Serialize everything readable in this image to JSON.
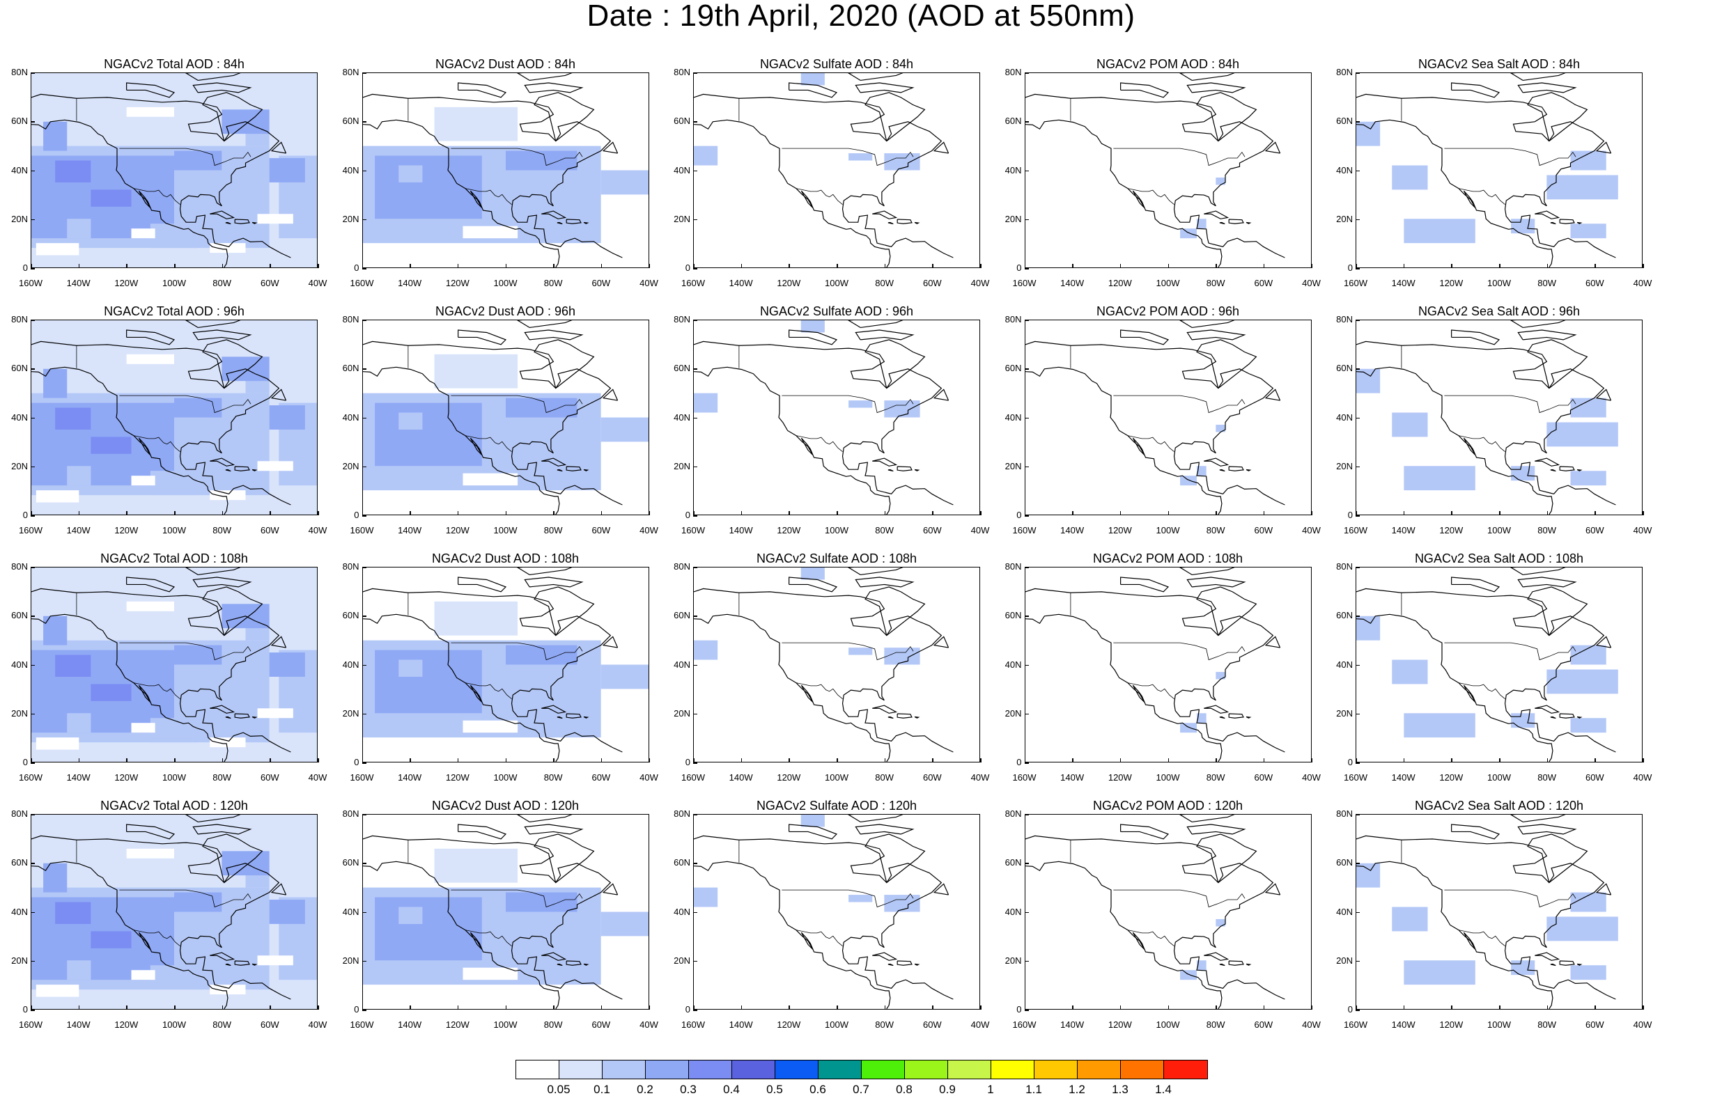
{
  "title": "Date : 19th April, 2020 (AOD at 550nm)",
  "map": {
    "lon_range": [
      -160,
      -40
    ],
    "lat_range": [
      0,
      80
    ],
    "lat_ticks": [
      {
        "value": 80,
        "label": "80N"
      },
      {
        "value": 60,
        "label": "60N"
      },
      {
        "value": 40,
        "label": "40N"
      },
      {
        "value": 20,
        "label": "20N"
      },
      {
        "value": 0,
        "label": "0"
      }
    ],
    "lon_ticks": [
      {
        "value": -160,
        "label": "160W"
      },
      {
        "value": -140,
        "label": "140W"
      },
      {
        "value": -120,
        "label": "120W"
      },
      {
        "value": -100,
        "label": "100W"
      },
      {
        "value": -80,
        "label": "80W"
      },
      {
        "value": -60,
        "label": "60W"
      },
      {
        "value": -40,
        "label": "40W"
      }
    ],
    "projection": "cylindrical equidistant",
    "basemap": "coastlines and political boundaries, North America"
  },
  "panels": [
    {
      "title": "NGACv2 Total AOD : 84h",
      "field": "total",
      "forecast_hour": 84
    },
    {
      "title": "NGACv2 Dust AOD : 84h",
      "field": "dust",
      "forecast_hour": 84
    },
    {
      "title": "NGACv2 Sulfate AOD : 84h",
      "field": "sulfate",
      "forecast_hour": 84
    },
    {
      "title": "NGACv2 POM AOD : 84h",
      "field": "pom",
      "forecast_hour": 84
    },
    {
      "title": "NGACv2 Sea Salt AOD : 84h",
      "field": "seasalt",
      "forecast_hour": 84
    },
    {
      "title": "NGACv2 Total AOD : 96h",
      "field": "total",
      "forecast_hour": 96
    },
    {
      "title": "NGACv2 Dust AOD : 96h",
      "field": "dust",
      "forecast_hour": 96
    },
    {
      "title": "NGACv2 Sulfate AOD : 96h",
      "field": "sulfate",
      "forecast_hour": 96
    },
    {
      "title": "NGACv2 POM AOD : 96h",
      "field": "pom",
      "forecast_hour": 96
    },
    {
      "title": "NGACv2 Sea Salt AOD : 96h",
      "field": "seasalt",
      "forecast_hour": 96
    },
    {
      "title": "NGACv2 Total AOD : 108h",
      "field": "total",
      "forecast_hour": 108
    },
    {
      "title": "NGACv2 Dust AOD : 108h",
      "field": "dust",
      "forecast_hour": 108
    },
    {
      "title": "NGACv2 Sulfate AOD : 108h",
      "field": "sulfate",
      "forecast_hour": 108
    },
    {
      "title": "NGACv2 POM AOD : 108h",
      "field": "pom",
      "forecast_hour": 108
    },
    {
      "title": "NGACv2 Sea Salt AOD : 108h",
      "field": "seasalt",
      "forecast_hour": 108
    },
    {
      "title": "NGACv2 Total AOD : 120h",
      "field": "total",
      "forecast_hour": 120
    },
    {
      "title": "NGACv2 Dust AOD : 120h",
      "field": "dust",
      "forecast_hour": 120
    },
    {
      "title": "NGACv2 Sulfate AOD : 120h",
      "field": "sulfate",
      "forecast_hour": 120
    },
    {
      "title": "NGACv2 POM AOD : 120h",
      "field": "pom",
      "forecast_hour": 120
    },
    {
      "title": "NGACv2 Sea Salt  AOD : 120h",
      "field": "seasalt",
      "forecast_hour": 120
    }
  ],
  "colorbar": {
    "colors": [
      "#ffffff",
      "#d9e4fb",
      "#b4c8f7",
      "#8fa9f5",
      "#7b8cf2",
      "#5a62e0",
      "#0a5cf5",
      "#00968f",
      "#4ef00a",
      "#9cf51a",
      "#c8f54a",
      "#ffff00",
      "#ffc800",
      "#ff9b00",
      "#ff7300",
      "#ff1e0a"
    ],
    "labels": [
      "0.05",
      "0.1",
      "0.2",
      "0.3",
      "0.4",
      "0.5",
      "0.6",
      "0.7",
      "0.8",
      "0.9",
      "1",
      "1.1",
      "1.2",
      "1.3",
      "1.4"
    ]
  }
}
